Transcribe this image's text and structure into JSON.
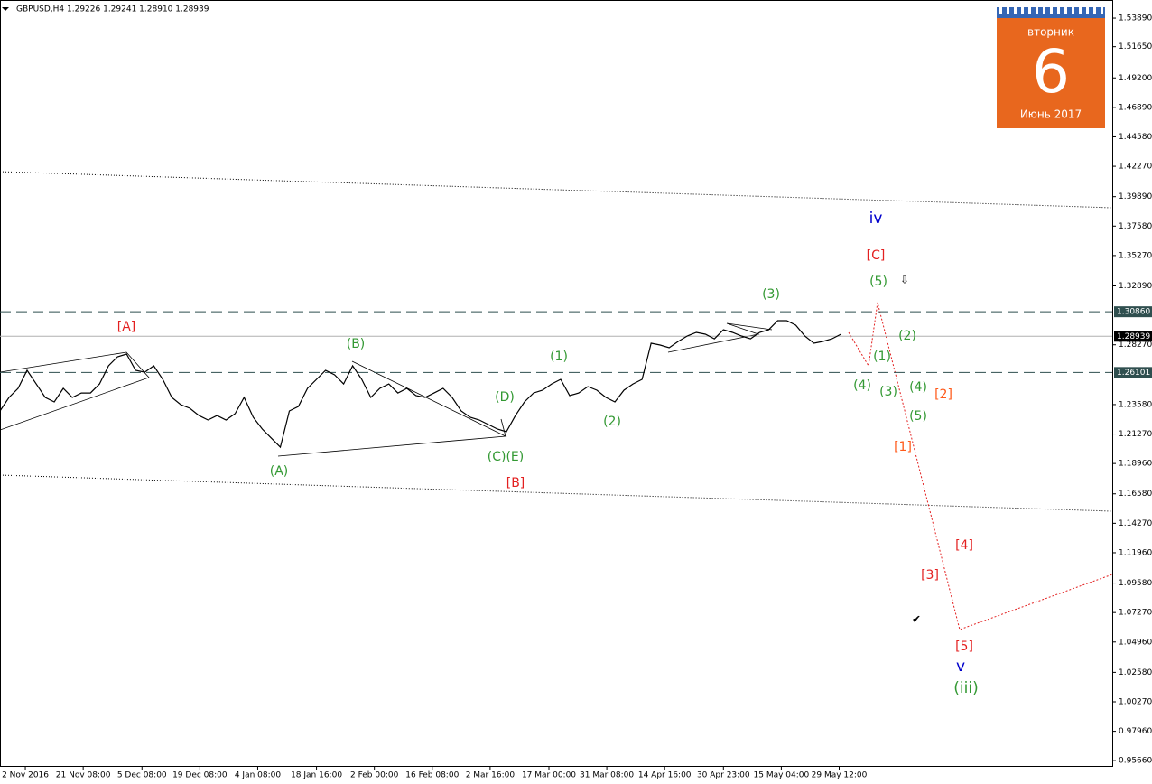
{
  "chart_data": {
    "type": "line",
    "title": "GBPUSD,H4  1.29226 1.29241 1.28910 1.28939",
    "color": "#000000",
    "x": [
      0,
      1,
      2,
      3,
      4,
      5,
      6,
      7,
      8,
      9,
      10,
      11,
      12,
      13,
      14,
      15,
      16,
      17,
      18,
      19,
      20,
      21,
      22,
      23,
      24,
      25,
      26,
      27,
      28,
      29,
      30,
      31,
      32,
      33,
      34,
      35,
      36,
      37,
      38,
      39,
      40,
      41,
      42,
      43,
      44,
      45,
      46,
      47,
      48,
      49,
      50,
      51,
      52,
      53,
      54,
      55,
      56,
      57,
      58,
      59,
      60,
      61,
      62,
      63,
      64,
      65,
      66,
      67,
      68,
      69,
      70,
      71,
      72,
      73,
      74,
      75,
      76,
      77,
      78,
      79,
      80,
      81,
      82,
      83,
      84,
      85,
      86,
      87,
      88,
      89,
      90,
      91,
      92,
      93
    ],
    "values": [
      1.2308,
      1.2414,
      1.2485,
      1.2627,
      1.252,
      1.2414,
      1.2379,
      1.2485,
      1.2414,
      1.2449,
      1.2449,
      1.252,
      1.2662,
      1.2733,
      1.2754,
      1.2627,
      1.2612,
      1.2662,
      1.2556,
      1.2414,
      1.2357,
      1.2329,
      1.2272,
      1.2237,
      1.2272,
      1.2237,
      1.2287,
      1.2414,
      1.2258,
      1.2166,
      1.2095,
      1.2024,
      1.2308,
      1.2343,
      1.2485,
      1.2556,
      1.2627,
      1.2591,
      1.252,
      1.2662,
      1.2556,
      1.2414,
      1.2485,
      1.252,
      1.2449,
      1.2485,
      1.2428,
      1.2414,
      1.2449,
      1.2485,
      1.2414,
      1.2308,
      1.2258,
      1.2237,
      1.2202,
      1.2166,
      1.2145,
      1.2272,
      1.2379,
      1.2449,
      1.2471,
      1.252,
      1.2556,
      1.2428,
      1.2449,
      1.2499,
      1.2471,
      1.2414,
      1.2379,
      1.2471,
      1.252,
      1.2556,
      1.2839,
      1.2825,
      1.2804,
      1.2853,
      1.2896,
      1.2924,
      1.291,
      1.2874,
      1.2945,
      1.2924,
      1.2896,
      1.2874,
      1.2924,
      1.2945,
      1.3016,
      1.3016,
      1.2981,
      1.2896,
      1.2839,
      1.2853,
      1.2874,
      1.291
    ],
    "xlim": [
      0,
      123
    ],
    "ylim": [
      0.9524,
      1.5531
    ],
    "xticks": [
      {
        "value": 2.8,
        "label": "2 Nov 2016"
      },
      {
        "value": 9.2,
        "label": "21 Nov 08:00"
      },
      {
        "value": 15.7,
        "label": "5 Dec 08:00"
      },
      {
        "value": 22.1,
        "label": "19 Dec 08:00"
      },
      {
        "value": 28.5,
        "label": "4 Jan 08:00"
      },
      {
        "value": 35.0,
        "label": "18 Jan 16:00"
      },
      {
        "value": 41.4,
        "label": "2 Feb 00:00"
      },
      {
        "value": 47.8,
        "label": "16 Feb 08:00"
      },
      {
        "value": 54.2,
        "label": "2 Mar 16:00"
      },
      {
        "value": 60.7,
        "label": "17 Mar 00:00"
      },
      {
        "value": 67.1,
        "label": "31 Mar 08:00"
      },
      {
        "value": 73.5,
        "label": "14 Apr 16:00"
      },
      {
        "value": 80.0,
        "label": "30 Apr 23:00"
      },
      {
        "value": 86.4,
        "label": "15 May 04:00"
      },
      {
        "value": 92.8,
        "label": "29 May 12:00"
      }
    ],
    "yticks": [
      {
        "value": 1.5389,
        "label": "1.53890"
      },
      {
        "value": 1.5165,
        "label": "1.51650"
      },
      {
        "value": 1.492,
        "label": "1.49200"
      },
      {
        "value": 1.4689,
        "label": "1.46890"
      },
      {
        "value": 1.4458,
        "label": "1.44580"
      },
      {
        "value": 1.4227,
        "label": "1.42270"
      },
      {
        "value": 1.3989,
        "label": "1.39890"
      },
      {
        "value": 1.3758,
        "label": "1.37580"
      },
      {
        "value": 1.3527,
        "label": "1.35270"
      },
      {
        "value": 1.3289,
        "label": "1.32890"
      },
      {
        "value": 1.2827,
        "label": "1.28270"
      },
      {
        "value": 1.2358,
        "label": "1.23580"
      },
      {
        "value": 1.2127,
        "label": "1.21270"
      },
      {
        "value": 1.1896,
        "label": "1.18960"
      },
      {
        "value": 1.1658,
        "label": "1.16580"
      },
      {
        "value": 1.1427,
        "label": "1.14270"
      },
      {
        "value": 1.1196,
        "label": "1.11960"
      },
      {
        "value": 1.0958,
        "label": "1.09580"
      },
      {
        "value": 1.0727,
        "label": "1.07270"
      },
      {
        "value": 1.0496,
        "label": "1.04960"
      },
      {
        "value": 1.0258,
        "label": "1.02580"
      },
      {
        "value": 1.0027,
        "label": "1.00270"
      },
      {
        "value": 0.9796,
        "label": "0.97960"
      },
      {
        "value": 0.9566,
        "label": "0.95660"
      }
    ],
    "levels": [
      {
        "value": 1.3086,
        "label": "1.30860",
        "style": "dashed"
      },
      {
        "value": 1.28939,
        "label": "1.28939",
        "style": "solid"
      },
      {
        "value": 1.26101,
        "label": "1.26101",
        "style": "dashed"
      }
    ],
    "annotations": [
      {
        "text": "[A]",
        "color": "#e32020"
      },
      {
        "text": "(B)",
        "color": "#339933"
      },
      {
        "text": "(1)",
        "color": "#339933"
      },
      {
        "text": "(3)",
        "color": "#339933"
      },
      {
        "text": "(D)",
        "color": "#339933"
      },
      {
        "text": "(C)(E)",
        "color": "#339933"
      },
      {
        "text": "(A)",
        "color": "#339933"
      },
      {
        "text": "[B]",
        "color": "#e32020"
      },
      {
        "text": "(2)",
        "color": "#339933"
      },
      {
        "text": "iv",
        "color": "#0000cc"
      },
      {
        "text": "[C]",
        "color": "#e32020"
      },
      {
        "text": "(5)",
        "color": "#339933"
      },
      {
        "text": "(2)",
        "color": "#339933"
      },
      {
        "text": "(1)",
        "color": "#339933"
      },
      {
        "text": "(4)",
        "color": "#339933"
      },
      {
        "text": "(3)",
        "color": "#339933"
      },
      {
        "text": "(4)",
        "color": "#339933"
      },
      {
        "text": "[2]",
        "color": "#ff5a1a"
      },
      {
        "text": "(5)",
        "color": "#339933"
      },
      {
        "text": "[1]",
        "color": "#ff5a1a"
      },
      {
        "text": "[4]",
        "color": "#e32020"
      },
      {
        "text": "[3]",
        "color": "#e32020"
      },
      {
        "text": "[5]",
        "color": "#e32020"
      },
      {
        "text": "v",
        "color": "#0000cc"
      },
      {
        "text": "(iii)",
        "color": "#339933"
      }
    ]
  },
  "calendar": {
    "weekday": "вторник",
    "day": "6",
    "month": "Июнь 2017"
  }
}
